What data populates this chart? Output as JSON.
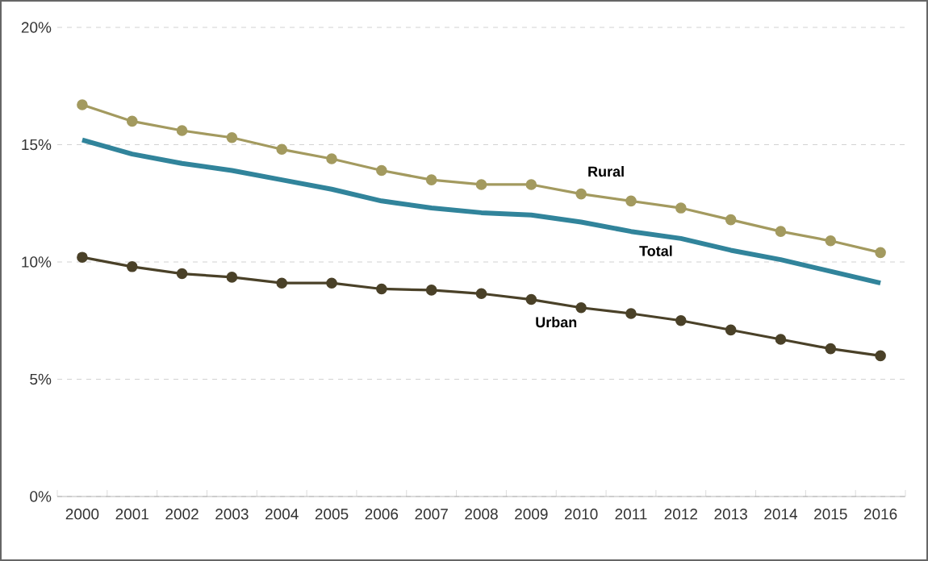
{
  "chart_data": {
    "type": "line",
    "categories": [
      "2000",
      "2001",
      "2002",
      "2003",
      "2004",
      "2005",
      "2006",
      "2007",
      "2008",
      "2009",
      "2010",
      "2011",
      "2012",
      "2013",
      "2014",
      "2015",
      "2016"
    ],
    "series": [
      {
        "name": "Rural",
        "color": "#a39a5f",
        "marker": "circle",
        "values": [
          16.7,
          16.0,
          15.6,
          15.3,
          14.8,
          14.4,
          13.9,
          13.5,
          13.3,
          13.3,
          12.9,
          12.6,
          12.3,
          11.8,
          11.3,
          10.9,
          10.4
        ]
      },
      {
        "name": "Total",
        "color": "#31849b",
        "marker": "none",
        "values": [
          15.2,
          14.6,
          14.2,
          13.9,
          13.5,
          13.1,
          12.6,
          12.3,
          12.1,
          12.0,
          11.7,
          11.3,
          11.0,
          10.5,
          10.1,
          9.6,
          9.1
        ]
      },
      {
        "name": "Urban",
        "color": "#4a4128",
        "marker": "circle",
        "values": [
          10.2,
          9.8,
          9.5,
          9.35,
          9.1,
          9.1,
          8.85,
          8.8,
          8.65,
          8.4,
          8.05,
          7.8,
          7.5,
          7.1,
          6.7,
          6.3,
          6.0
        ]
      }
    ],
    "ylim": [
      0,
      20
    ],
    "yticks": [
      {
        "value": 0,
        "label": "0%"
      },
      {
        "value": 5,
        "label": "5%"
      },
      {
        "value": 10,
        "label": "10%"
      },
      {
        "value": 15,
        "label": "15%"
      },
      {
        "value": 20,
        "label": "20%"
      }
    ],
    "grid": "y",
    "legend": false
  }
}
